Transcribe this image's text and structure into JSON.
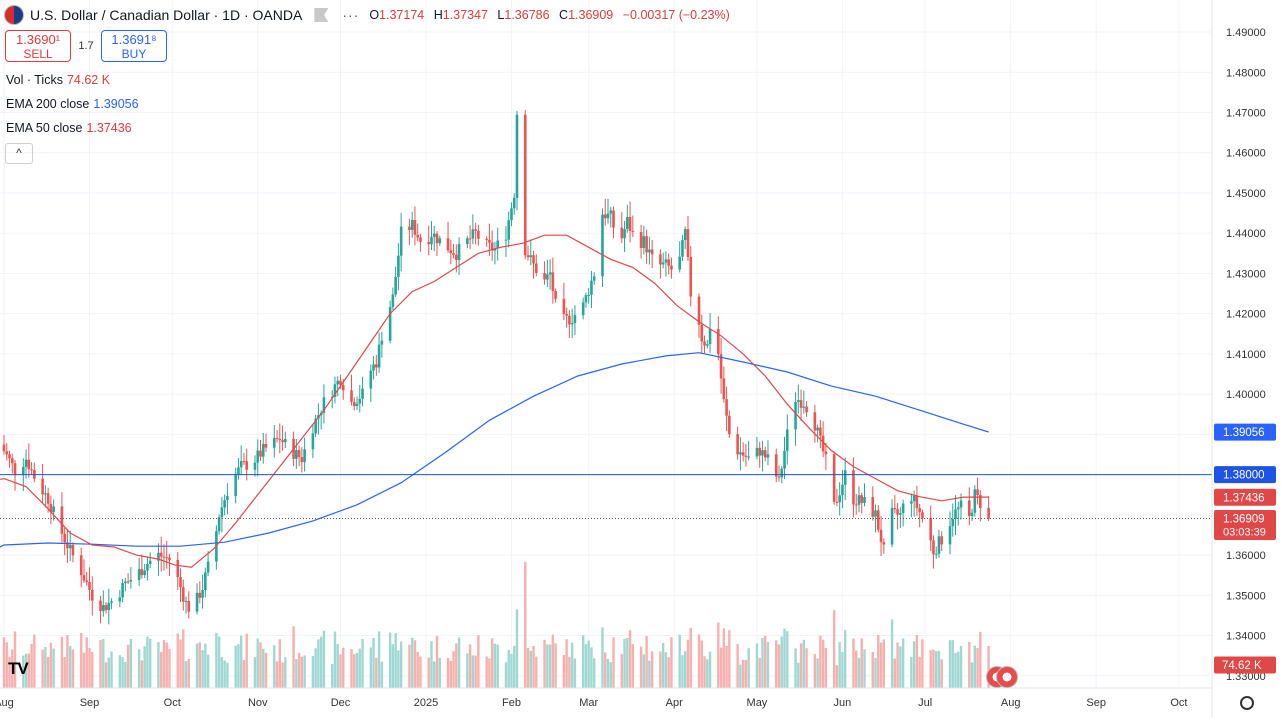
{
  "header": {
    "symbol_title": "U.S. Dollar / Canadian Dollar · 1D · OANDA",
    "more": "···",
    "ohlc": {
      "o_label": "O",
      "o": "1.37174",
      "h_label": "H",
      "h": "1.37347",
      "l_label": "L",
      "l": "1.36786",
      "c_label": "C",
      "c": "1.36909",
      "change": "−0.00317 (−0.23%)"
    }
  },
  "trade": {
    "sell_price": "1.3690¹",
    "sell_label": "SELL",
    "spread": "1.7",
    "buy_price": "1.3691⁸",
    "buy_label": "BUY"
  },
  "indicators": {
    "vol_label": "Vol · Ticks",
    "vol_value": "74.62 K",
    "ema200_label": "EMA 200 close",
    "ema200_value": "1.39056",
    "ema50_label": "EMA 50 close",
    "ema50_value": "1.37436",
    "collapse": "^"
  },
  "colors": {
    "up": "#26a69a",
    "down": "#ef5350",
    "up_vol": "#9fd8d2",
    "down_vol": "#f6b0ae",
    "ema200": "#2962ff",
    "ema50": "#e04848",
    "hline": "#1e53e5",
    "grid": "#f0f3fa"
  },
  "chart_data": {
    "type": "candlestick",
    "y_axis": {
      "ticks": [
        "1.49000",
        "1.48000",
        "1.47000",
        "1.46000",
        "1.45000",
        "1.44000",
        "1.43000",
        "1.42000",
        "1.41000",
        "1.40000",
        "1.39000",
        "1.38000",
        "1.37000",
        "1.36000",
        "1.35000",
        "1.34000",
        "1.33000"
      ],
      "range": [
        1.3292,
        1.492
      ]
    },
    "x_axis": {
      "labels": [
        {
          "t": "Aug",
          "d": 0
        },
        {
          "t": "Sep",
          "d": 31
        },
        {
          "t": "Oct",
          "d": 61
        },
        {
          "t": "Nov",
          "d": 92
        },
        {
          "t": "Dec",
          "d": 122
        },
        {
          "t": "2025",
          "d": 153
        },
        {
          "t": "Feb",
          "d": 184
        },
        {
          "t": "Mar",
          "d": 212
        },
        {
          "t": "Apr",
          "d": 243
        },
        {
          "t": "May",
          "d": 273
        },
        {
          "t": "Jun",
          "d": 304
        },
        {
          "t": "Jul",
          "d": 334
        },
        {
          "t": "Aug",
          "d": 365
        },
        {
          "t": "Sep",
          "d": 396
        },
        {
          "t": "Oct",
          "d": 426
        }
      ]
    },
    "price_labels": [
      {
        "text": "1.39056",
        "value": 1.39056,
        "color": "#2962ff"
      },
      {
        "text": "1.38000",
        "value": 1.38,
        "color": "#1e53e5"
      },
      {
        "text": "1.37436",
        "value": 1.37436,
        "color": "#e04848"
      },
      {
        "text": "1.36909",
        "value": 1.36909,
        "color": "#e04848",
        "sub": "03:03:39"
      }
    ],
    "volume_label": {
      "text": "74.62 K",
      "color": "#e04848"
    },
    "horizontal_line": 1.38,
    "last_price": 1.36909,
    "anchors": [
      [
        -4,
        1.388
      ],
      [
        0,
        1.386
      ],
      [
        4,
        1.381
      ],
      [
        8,
        1.384
      ],
      [
        12,
        1.378
      ],
      [
        16,
        1.374
      ],
      [
        20,
        1.367
      ],
      [
        24,
        1.361
      ],
      [
        28,
        1.356
      ],
      [
        32,
        1.35
      ],
      [
        36,
        1.347
      ],
      [
        40,
        1.349
      ],
      [
        44,
        1.353
      ],
      [
        48,
        1.355
      ],
      [
        52,
        1.358
      ],
      [
        56,
        1.36
      ],
      [
        60,
        1.359
      ],
      [
        62,
        1.356
      ],
      [
        66,
        1.348
      ],
      [
        68,
        1.346
      ],
      [
        72,
        1.352
      ],
      [
        76,
        1.362
      ],
      [
        78,
        1.37
      ],
      [
        82,
        1.378
      ],
      [
        86,
        1.382
      ],
      [
        90,
        1.383
      ],
      [
        94,
        1.386
      ],
      [
        98,
        1.388
      ],
      [
        100,
        1.389
      ],
      [
        104,
        1.386
      ],
      [
        108,
        1.384
      ],
      [
        112,
        1.392
      ],
      [
        116,
        1.398
      ],
      [
        118,
        1.4
      ],
      [
        122,
        1.404
      ],
      [
        126,
        1.398
      ],
      [
        130,
        1.4
      ],
      [
        132,
        1.405
      ],
      [
        135,
        1.408
      ],
      [
        138,
        1.418
      ],
      [
        141,
        1.424
      ],
      [
        144,
        1.44
      ],
      [
        148,
        1.442
      ],
      [
        152,
        1.437
      ],
      [
        155,
        1.44
      ],
      [
        160,
        1.437
      ],
      [
        164,
        1.435
      ],
      [
        168,
        1.438
      ],
      [
        171,
        1.44
      ],
      [
        174,
        1.437
      ],
      [
        178,
        1.436
      ],
      [
        182,
        1.44
      ],
      [
        185,
        1.45
      ],
      [
        186,
        1.47
      ],
      [
        187,
        1.446
      ],
      [
        189,
        1.436
      ],
      [
        192,
        1.432
      ],
      [
        196,
        1.428
      ],
      [
        198,
        1.43
      ],
      [
        200,
        1.422
      ],
      [
        202,
        1.418
      ],
      [
        206,
        1.419
      ],
      [
        210,
        1.422
      ],
      [
        214,
        1.43
      ],
      [
        217,
        1.445
      ],
      [
        220,
        1.444
      ],
      [
        223,
        1.437
      ],
      [
        226,
        1.443
      ],
      [
        229,
        1.438
      ],
      [
        232,
        1.438
      ],
      [
        236,
        1.432
      ],
      [
        240,
        1.432
      ],
      [
        244,
        1.43
      ],
      [
        247,
        1.44
      ],
      [
        249,
        1.425
      ],
      [
        251,
        1.422
      ],
      [
        253,
        1.414
      ],
      [
        255,
        1.412
      ],
      [
        257,
        1.422
      ],
      [
        259,
        1.41
      ],
      [
        261,
        1.398
      ],
      [
        263,
        1.39
      ],
      [
        266,
        1.386
      ],
      [
        270,
        1.384
      ],
      [
        274,
        1.386
      ],
      [
        278,
        1.383
      ],
      [
        281,
        1.378
      ],
      [
        284,
        1.39
      ],
      [
        287,
        1.399
      ],
      [
        290,
        1.398
      ],
      [
        293,
        1.395
      ],
      [
        296,
        1.388
      ],
      [
        299,
        1.381
      ],
      [
        301,
        1.372
      ],
      [
        305,
        1.38
      ],
      [
        308,
        1.374
      ],
      [
        312,
        1.373
      ],
      [
        316,
        1.37
      ],
      [
        319,
        1.361
      ],
      [
        321,
        1.37
      ],
      [
        325,
        1.37
      ],
      [
        328,
        1.376
      ],
      [
        331,
        1.372
      ],
      [
        334,
        1.368
      ],
      [
        337,
        1.361
      ],
      [
        341,
        1.365
      ],
      [
        344,
        1.37
      ],
      [
        347,
        1.372
      ],
      [
        350,
        1.369
      ],
      [
        352,
        1.375
      ],
      [
        355,
        1.372
      ],
      [
        357,
        1.369
      ]
    ],
    "ema50": [
      [
        -4,
        1.3785
      ],
      [
        0,
        1.379
      ],
      [
        8,
        1.377
      ],
      [
        16,
        1.3715
      ],
      [
        24,
        1.3655
      ],
      [
        32,
        1.3625
      ],
      [
        40,
        1.362
      ],
      [
        48,
        1.36
      ],
      [
        56,
        1.359
      ],
      [
        62,
        1.3575
      ],
      [
        68,
        1.357
      ],
      [
        76,
        1.3615
      ],
      [
        84,
        1.368
      ],
      [
        92,
        1.375
      ],
      [
        100,
        1.382
      ],
      [
        108,
        1.389
      ],
      [
        116,
        1.396
      ],
      [
        124,
        1.404
      ],
      [
        132,
        1.412
      ],
      [
        140,
        1.42
      ],
      [
        148,
        1.4255
      ],
      [
        156,
        1.428
      ],
      [
        164,
        1.4315
      ],
      [
        172,
        1.435
      ],
      [
        180,
        1.4365
      ],
      [
        188,
        1.4375
      ],
      [
        196,
        1.4395
      ],
      [
        204,
        1.4395
      ],
      [
        212,
        1.4365
      ],
      [
        220,
        1.4335
      ],
      [
        228,
        1.4315
      ],
      [
        236,
        1.4275
      ],
      [
        244,
        1.422
      ],
      [
        252,
        1.418
      ],
      [
        260,
        1.4145
      ],
      [
        268,
        1.41
      ],
      [
        276,
        1.4045
      ],
      [
        284,
        1.3975
      ],
      [
        292,
        1.3915
      ],
      [
        300,
        1.386
      ],
      [
        308,
        1.382
      ],
      [
        316,
        1.379
      ],
      [
        324,
        1.376
      ],
      [
        332,
        1.3745
      ],
      [
        340,
        1.3735
      ],
      [
        348,
        1.3744
      ],
      [
        357,
        1.3744
      ]
    ],
    "ema200": [
      [
        -4,
        1.3612
      ],
      [
        0,
        1.3625
      ],
      [
        16,
        1.363
      ],
      [
        32,
        1.3627
      ],
      [
        48,
        1.3622
      ],
      [
        64,
        1.3622
      ],
      [
        80,
        1.3632
      ],
      [
        96,
        1.3655
      ],
      [
        112,
        1.3685
      ],
      [
        128,
        1.3725
      ],
      [
        144,
        1.378
      ],
      [
        160,
        1.3855
      ],
      [
        176,
        1.3935
      ],
      [
        192,
        1.3995
      ],
      [
        208,
        1.4045
      ],
      [
        224,
        1.4075
      ],
      [
        240,
        1.4095
      ],
      [
        252,
        1.4103
      ],
      [
        268,
        1.408
      ],
      [
        284,
        1.4055
      ],
      [
        300,
        1.402
      ],
      [
        316,
        1.3995
      ],
      [
        332,
        1.396
      ],
      [
        348,
        1.3925
      ],
      [
        357,
        1.3906
      ]
    ]
  }
}
